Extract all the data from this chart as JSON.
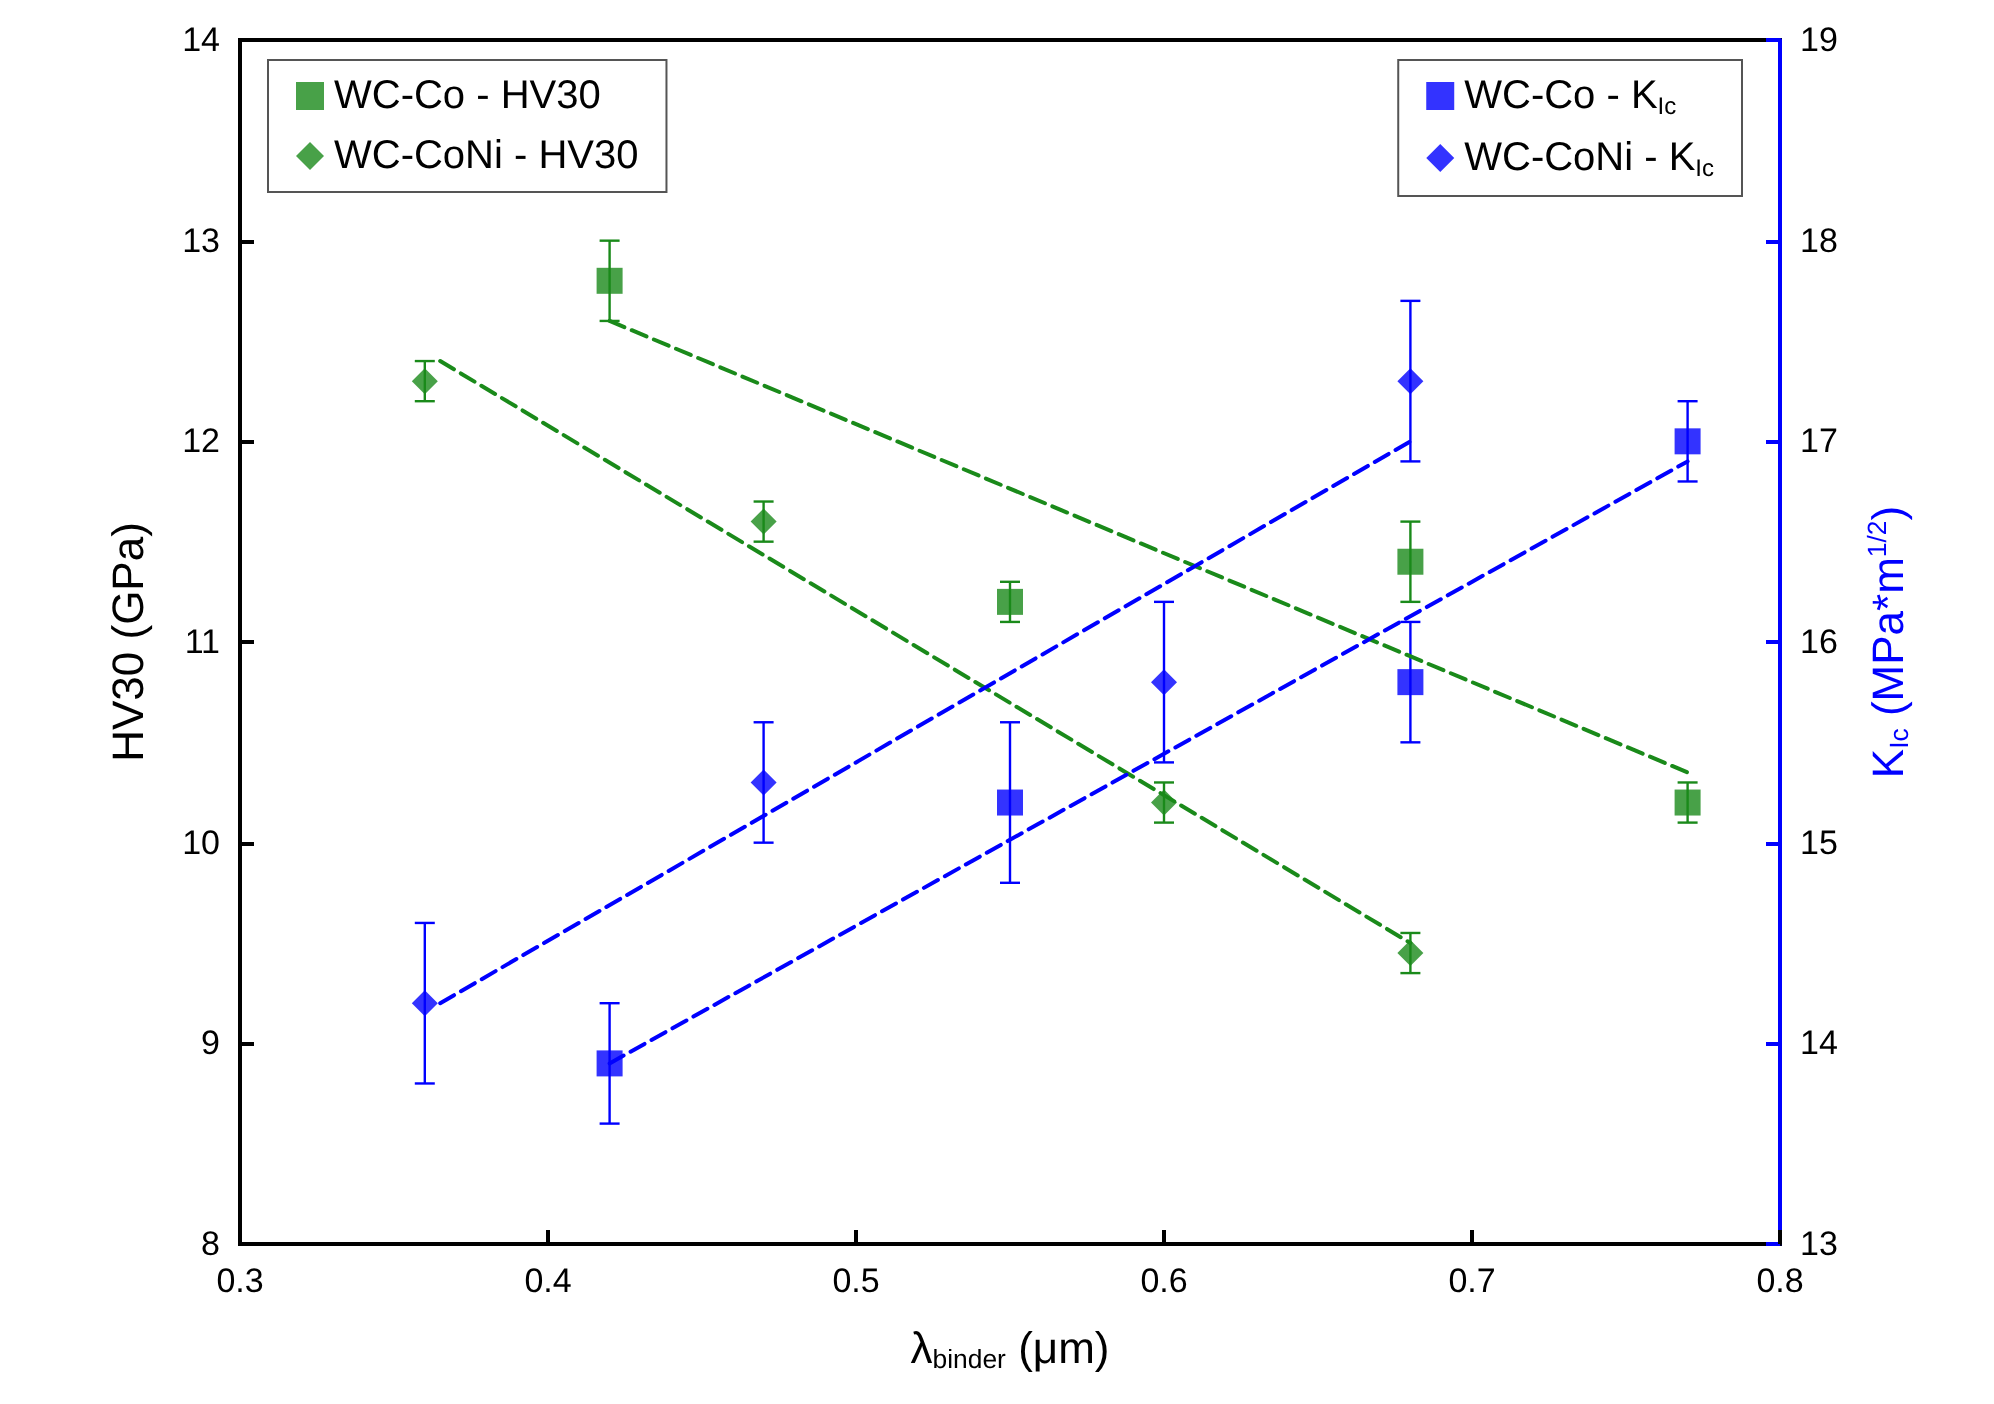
{
  "chart_data": {
    "type": "scatter",
    "xlabel": "λ$_{binder}$ (μm)",
    "ylabel": "HV30 (GPa)",
    "y2label": "K$_{Ic}$ (MPa*m$^{1/2}$)",
    "xlim": [
      0.3,
      0.8
    ],
    "xticks": [
      0.3,
      0.4,
      0.5,
      0.6,
      0.7,
      0.8
    ],
    "ylim": [
      8,
      14
    ],
    "yticks": [
      8,
      9,
      10,
      11,
      12,
      13,
      14
    ],
    "y2lim": [
      13,
      19
    ],
    "y2ticks": [
      13,
      14,
      15,
      16,
      17,
      18,
      19
    ],
    "grid": false,
    "legend": "top",
    "series": [
      {
        "name": "WC-Co - HV30",
        "color": "#1a8a1a",
        "marker": "square",
        "x": [
          0.42,
          0.55,
          0.68,
          0.77
        ],
        "values": [
          12.8,
          11.2,
          11.4,
          10.2
        ],
        "errors": [
          0.2,
          0.1,
          0.2,
          0.1
        ]
      },
      {
        "name": "WC-CoNi - HV30",
        "color": "#1a8a1a",
        "marker": "diamond",
        "x": [
          0.36,
          0.47,
          0.6,
          0.68
        ],
        "values": [
          12.3,
          11.6,
          10.2,
          9.45
        ],
        "errors": [
          0.1,
          0.1,
          0.1,
          0.1
        ]
      },
      {
        "name": "WC-Co - K$_{Ic}$",
        "color": "#0000ff",
        "marker": "square",
        "axis": "y2",
        "x": [
          0.42,
          0.55,
          0.68,
          0.77
        ],
        "values": [
          13.9,
          15.2,
          15.8,
          17.0
        ],
        "errors": [
          0.3,
          0.4,
          0.3,
          0.2
        ]
      },
      {
        "name": "WC-CoNi - K$_{Ic}$",
        "color": "#0000ff",
        "marker": "diamond",
        "axis": "y2",
        "x": [
          0.36,
          0.47,
          0.6,
          0.68
        ],
        "values": [
          14.2,
          15.3,
          15.8,
          17.3
        ],
        "errors": [
          0.4,
          0.3,
          0.4,
          0.4
        ]
      },
      {
        "type": "line",
        "color": "#1a8a1a",
        "line_style": "dashed",
        "marker": "none",
        "x": [
          0.42,
          0.77
        ],
        "values": [
          12.6,
          10.35
        ]
      },
      {
        "type": "line",
        "color": "#1a8a1a",
        "line_style": "dashed",
        "marker": "none",
        "x": [
          0.365,
          0.68
        ],
        "values": [
          12.4,
          9.5
        ]
      },
      {
        "type": "line",
        "color": "#0000ff",
        "line_style": "dashed",
        "marker": "none",
        "axis": "y2",
        "x": [
          0.42,
          0.77
        ],
        "values": [
          13.9,
          16.9
        ]
      },
      {
        "type": "line",
        "color": "#0000ff",
        "line_style": "dashed",
        "marker": "none",
        "axis": "y2",
        "x": [
          0.365,
          0.68
        ],
        "values": [
          14.2,
          17.0
        ]
      }
    ]
  }
}
